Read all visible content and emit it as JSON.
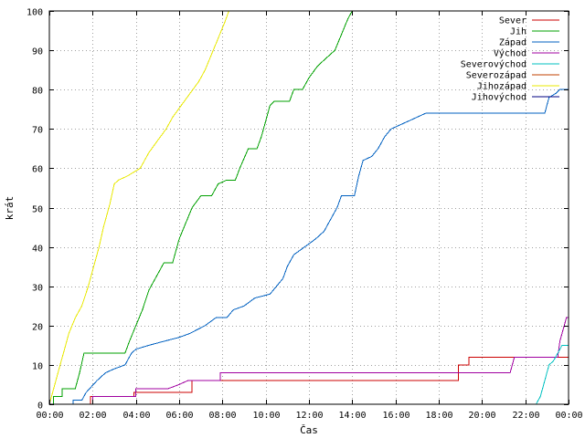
{
  "chart_data": {
    "type": "line",
    "step": true,
    "xlabel": "Čas",
    "ylabel": "krát",
    "xlim": [
      0,
      24
    ],
    "ylim": [
      0,
      100
    ],
    "xticks": [
      {
        "v": 0,
        "label": "00:00"
      },
      {
        "v": 2,
        "label": "02:00"
      },
      {
        "v": 4,
        "label": "04:00"
      },
      {
        "v": 6,
        "label": "06:00"
      },
      {
        "v": 8,
        "label": "08:00"
      },
      {
        "v": 10,
        "label": "10:00"
      },
      {
        "v": 12,
        "label": "12:00"
      },
      {
        "v": 14,
        "label": "14:00"
      },
      {
        "v": 16,
        "label": "16:00"
      },
      {
        "v": 18,
        "label": "18:00"
      },
      {
        "v": 20,
        "label": "20:00"
      },
      {
        "v": 22,
        "label": "22:00"
      },
      {
        "v": 24,
        "label": "00:00"
      }
    ],
    "yticks": [
      0,
      10,
      20,
      30,
      40,
      50,
      60,
      70,
      80,
      90,
      100
    ],
    "grid": true,
    "legend_position": "top-right",
    "series": [
      {
        "name": "Sever",
        "color": "#cc0000",
        "points": [
          [
            0,
            0
          ],
          [
            1.9,
            0
          ],
          [
            1.9,
            2
          ],
          [
            3.9,
            2
          ],
          [
            3.9,
            3
          ],
          [
            6.6,
            3
          ],
          [
            6.6,
            6
          ],
          [
            18.9,
            6
          ],
          [
            18.9,
            10
          ],
          [
            19.4,
            10
          ],
          [
            19.4,
            12
          ],
          [
            24,
            12
          ]
        ]
      },
      {
        "name": "Jih",
        "color": "#00a000",
        "points": [
          [
            0,
            0
          ],
          [
            0.2,
            0
          ],
          [
            0.2,
            2
          ],
          [
            0.6,
            2
          ],
          [
            0.6,
            4
          ],
          [
            1.2,
            4
          ],
          [
            1.4,
            8
          ],
          [
            1.6,
            13
          ],
          [
            3.5,
            13
          ],
          [
            3.7,
            16
          ],
          [
            4.0,
            20
          ],
          [
            4.3,
            24
          ],
          [
            4.6,
            29
          ],
          [
            5.0,
            33
          ],
          [
            5.3,
            36
          ],
          [
            5.7,
            36
          ],
          [
            6.0,
            42
          ],
          [
            6.3,
            46
          ],
          [
            6.6,
            50
          ],
          [
            7.0,
            53
          ],
          [
            7.5,
            53
          ],
          [
            7.8,
            56
          ],
          [
            8.2,
            57
          ],
          [
            8.6,
            57
          ],
          [
            8.8,
            60
          ],
          [
            9.2,
            65
          ],
          [
            9.6,
            65
          ],
          [
            9.8,
            68
          ],
          [
            10.0,
            72
          ],
          [
            10.2,
            76
          ],
          [
            10.4,
            77
          ],
          [
            11.1,
            77
          ],
          [
            11.3,
            80
          ],
          [
            11.7,
            80
          ],
          [
            12.0,
            83
          ],
          [
            12.4,
            86
          ],
          [
            12.8,
            88
          ],
          [
            13.2,
            90
          ],
          [
            13.5,
            94
          ],
          [
            13.8,
            98
          ],
          [
            14.0,
            100
          ]
        ]
      },
      {
        "name": "Západ",
        "color": "#0060c0",
        "points": [
          [
            0,
            0
          ],
          [
            1.1,
            0
          ],
          [
            1.1,
            1
          ],
          [
            1.5,
            1
          ],
          [
            1.7,
            3
          ],
          [
            2.2,
            6
          ],
          [
            2.6,
            8
          ],
          [
            3.0,
            9
          ],
          [
            3.5,
            10
          ],
          [
            3.8,
            13
          ],
          [
            4.0,
            14
          ],
          [
            4.6,
            15
          ],
          [
            5.3,
            16
          ],
          [
            6.0,
            17
          ],
          [
            6.5,
            18
          ],
          [
            7.2,
            20
          ],
          [
            7.7,
            22
          ],
          [
            8.2,
            22
          ],
          [
            8.5,
            24
          ],
          [
            9.0,
            25
          ],
          [
            9.5,
            27
          ],
          [
            10.2,
            28
          ],
          [
            10.5,
            30
          ],
          [
            10.8,
            32
          ],
          [
            11.0,
            35
          ],
          [
            11.3,
            38
          ],
          [
            11.8,
            40
          ],
          [
            12.3,
            42
          ],
          [
            12.7,
            44
          ],
          [
            13.0,
            47
          ],
          [
            13.3,
            50
          ],
          [
            13.5,
            53
          ],
          [
            14.1,
            53
          ],
          [
            14.3,
            58
          ],
          [
            14.5,
            62
          ],
          [
            14.9,
            63
          ],
          [
            15.2,
            65
          ],
          [
            15.5,
            68
          ],
          [
            15.8,
            70
          ],
          [
            16.2,
            71
          ],
          [
            16.6,
            72
          ],
          [
            17.0,
            73
          ],
          [
            17.4,
            74
          ],
          [
            22.9,
            74
          ],
          [
            23.0,
            76
          ],
          [
            23.1,
            78
          ],
          [
            23.4,
            79
          ],
          [
            23.6,
            80
          ],
          [
            24,
            80
          ]
        ]
      },
      {
        "name": "Východ",
        "color": "#a000a0",
        "points": [
          [
            0,
            0
          ],
          [
            2.0,
            0
          ],
          [
            2.0,
            2
          ],
          [
            4.0,
            2
          ],
          [
            4.0,
            4
          ],
          [
            5.5,
            4
          ],
          [
            6.0,
            5
          ],
          [
            6.4,
            6
          ],
          [
            7.9,
            6
          ],
          [
            7.9,
            8
          ],
          [
            21.3,
            8
          ],
          [
            21.5,
            12
          ],
          [
            23.5,
            12
          ],
          [
            23.6,
            16
          ],
          [
            23.8,
            20
          ],
          [
            23.9,
            22
          ],
          [
            24,
            22
          ]
        ]
      },
      {
        "name": "Severovýchod",
        "color": "#00c0c0",
        "points": [
          [
            22.5,
            0
          ],
          [
            22.7,
            2
          ],
          [
            22.8,
            4
          ],
          [
            22.9,
            6
          ],
          [
            23.0,
            8
          ],
          [
            23.1,
            10
          ],
          [
            23.3,
            11
          ],
          [
            23.5,
            13
          ],
          [
            23.7,
            15
          ],
          [
            24,
            15
          ]
        ]
      },
      {
        "name": "Severozápad",
        "color": "#c04000",
        "points": []
      },
      {
        "name": "Jihozápad",
        "color": "#e8e800",
        "points": [
          [
            0,
            0
          ],
          [
            0.1,
            2
          ],
          [
            0.3,
            6
          ],
          [
            0.5,
            10
          ],
          [
            0.7,
            14
          ],
          [
            0.9,
            18
          ],
          [
            1.2,
            22
          ],
          [
            1.5,
            25
          ],
          [
            1.8,
            30
          ],
          [
            2.0,
            34
          ],
          [
            2.3,
            40
          ],
          [
            2.5,
            45
          ],
          [
            2.8,
            51
          ],
          [
            3.0,
            56
          ],
          [
            3.2,
            57
          ],
          [
            3.6,
            58
          ],
          [
            4.2,
            60
          ],
          [
            4.6,
            64
          ],
          [
            5.0,
            67
          ],
          [
            5.4,
            70
          ],
          [
            5.7,
            73
          ],
          [
            6.1,
            76
          ],
          [
            6.5,
            79
          ],
          [
            6.9,
            82
          ],
          [
            7.2,
            85
          ],
          [
            7.5,
            89
          ],
          [
            7.8,
            93
          ],
          [
            8.1,
            97
          ],
          [
            8.3,
            100
          ]
        ]
      },
      {
        "name": "Jihovýchod",
        "color": "#000080",
        "points": []
      }
    ]
  }
}
